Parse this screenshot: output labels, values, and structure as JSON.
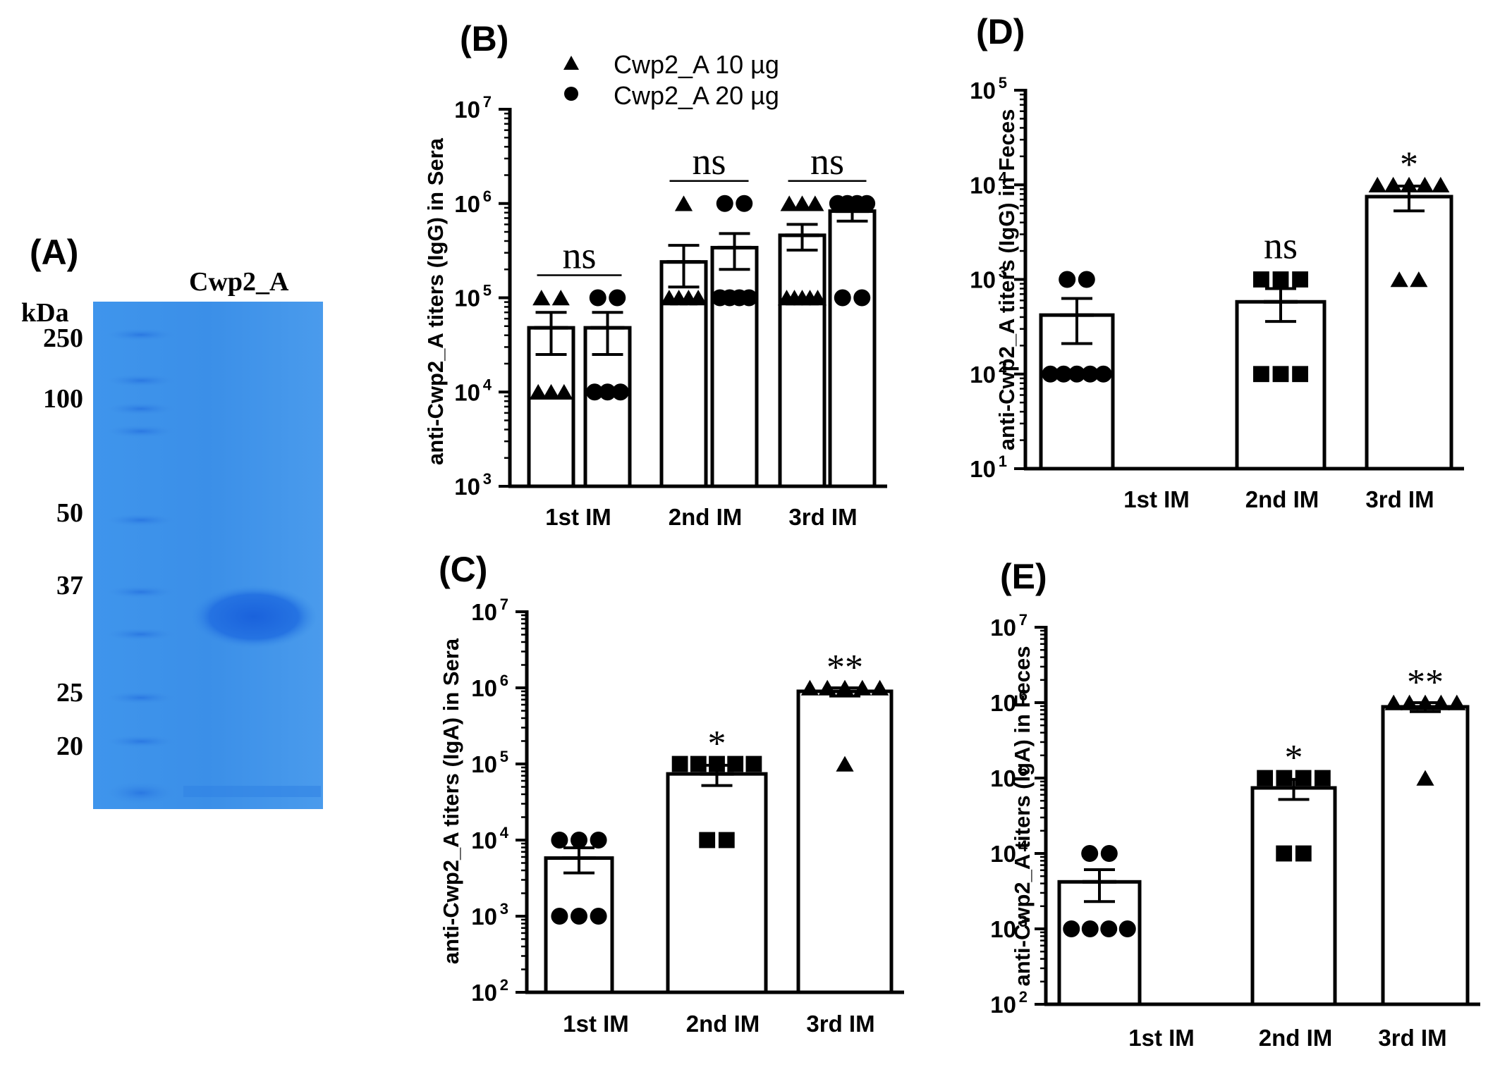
{
  "figure": {
    "gel": {
      "panel_label": "(A)",
      "lane_label": "Cwp2_A",
      "unit_label": "kDa",
      "markers": [
        "250",
        "100",
        "50",
        "37",
        "25",
        "20"
      ],
      "colors": {
        "background": "#3a8fe6",
        "band": "#1f6fe0"
      }
    },
    "legend": {
      "items": [
        {
          "label": "Cwp2_A 10 µg",
          "marker": "triangle"
        },
        {
          "label": "Cwp2_A 20 µg",
          "marker": "circle"
        }
      ]
    }
  },
  "chart_data": [
    {
      "id": "B",
      "panel_label": "(B)",
      "type": "bar",
      "ylabel": "anti-Cwp2_A titers (IgG) in Sera",
      "yscale": "log",
      "ylim_exp": [
        3,
        7
      ],
      "categories": [
        "1st IM",
        "2nd IM",
        "3rd IM"
      ],
      "series": [
        {
          "name": "Cwp2_A 10 µg",
          "marker": "triangle",
          "values": [
            48000,
            240000,
            460000
          ],
          "sem_low": [
            25000,
            130000,
            320000
          ],
          "sem_high": [
            70000,
            360000,
            600000
          ],
          "points": [
            [
              100000,
              100000,
              10000,
              10000,
              10000
            ],
            [
              1000000,
              100000,
              100000,
              100000,
              100000
            ],
            [
              1000000,
              1000000,
              1000000,
              100000,
              100000,
              100000,
              100000,
              100000
            ]
          ]
        },
        {
          "name": "Cwp2_A 20 µg",
          "marker": "circle",
          "values": [
            48000,
            340000,
            830000
          ],
          "sem_low": [
            25000,
            200000,
            650000
          ],
          "sem_high": [
            70000,
            480000,
            980000
          ],
          "points": [
            [
              100000,
              100000,
              10000,
              10000,
              10000
            ],
            [
              1000000,
              1000000,
              100000,
              100000,
              100000,
              100000
            ],
            [
              1000000,
              1000000,
              1000000,
              1000000,
              100000,
              100000
            ]
          ]
        }
      ],
      "annotations": [
        "ns",
        "ns",
        "ns"
      ]
    },
    {
      "id": "C",
      "panel_label": "(C)",
      "type": "bar",
      "ylabel": "anti-Cwp2_A titers (IgA) in Sera",
      "yscale": "log",
      "ylim_exp": [
        2,
        7
      ],
      "categories": [
        "1st IM",
        "2nd IM",
        "3rd IM"
      ],
      "values": [
        5800,
        74000,
        900000
      ],
      "sem_low": [
        3700,
        52000,
        780000
      ],
      "sem_high": [
        7900,
        96000,
        1000000
      ],
      "point_markers": [
        "circle",
        "square",
        "triangle"
      ],
      "points": [
        [
          10000,
          10000,
          10000,
          1000,
          1000,
          1000
        ],
        [
          100000,
          100000,
          100000,
          100000,
          100000,
          10000,
          10000
        ],
        [
          1000000,
          1000000,
          1000000,
          1000000,
          1000000,
          100000
        ]
      ],
      "annotations": [
        "",
        "*",
        "**"
      ]
    },
    {
      "id": "D",
      "panel_label": "(D)",
      "type": "bar",
      "ylabel": "anti-Cwp2_A titers (IgG) in Feces",
      "yscale": "log",
      "ylim_exp": [
        1,
        5
      ],
      "categories": [
        "1st IM",
        "2nd IM",
        "3rd IM"
      ],
      "values": [
        420,
        580,
        7500
      ],
      "sem_low": [
        210,
        360,
        5300
      ],
      "sem_high": [
        630,
        800,
        9700
      ],
      "point_markers": [
        "circle",
        "square",
        "triangle"
      ],
      "points": [
        [
          1000,
          1000,
          100,
          100,
          100,
          100,
          100
        ],
        [
          1000,
          1000,
          1000,
          100,
          100,
          100
        ],
        [
          10000,
          10000,
          10000,
          10000,
          10000,
          1000,
          1000
        ]
      ],
      "annotations": [
        "",
        "ns",
        "*"
      ]
    },
    {
      "id": "E",
      "panel_label": "(E)",
      "type": "bar",
      "ylabel": "anti-Cwp2_A titers (IgA) in Feces",
      "yscale": "log",
      "ylim_exp": [
        2,
        7
      ],
      "categories": [
        "1st IM",
        "2nd IM",
        "3rd IM"
      ],
      "values": [
        4200,
        74000,
        880000
      ],
      "sem_low": [
        2300,
        52000,
        760000
      ],
      "sem_high": [
        6100,
        96000,
        1000000
      ],
      "point_markers": [
        "circle",
        "square",
        "triangle"
      ],
      "points": [
        [
          10000,
          10000,
          1000,
          1000,
          1000,
          1000
        ],
        [
          100000,
          100000,
          100000,
          100000,
          10000,
          10000
        ],
        [
          1000000,
          1000000,
          1000000,
          1000000,
          1000000,
          100000
        ]
      ],
      "annotations": [
        "",
        "*",
        "**"
      ]
    }
  ]
}
